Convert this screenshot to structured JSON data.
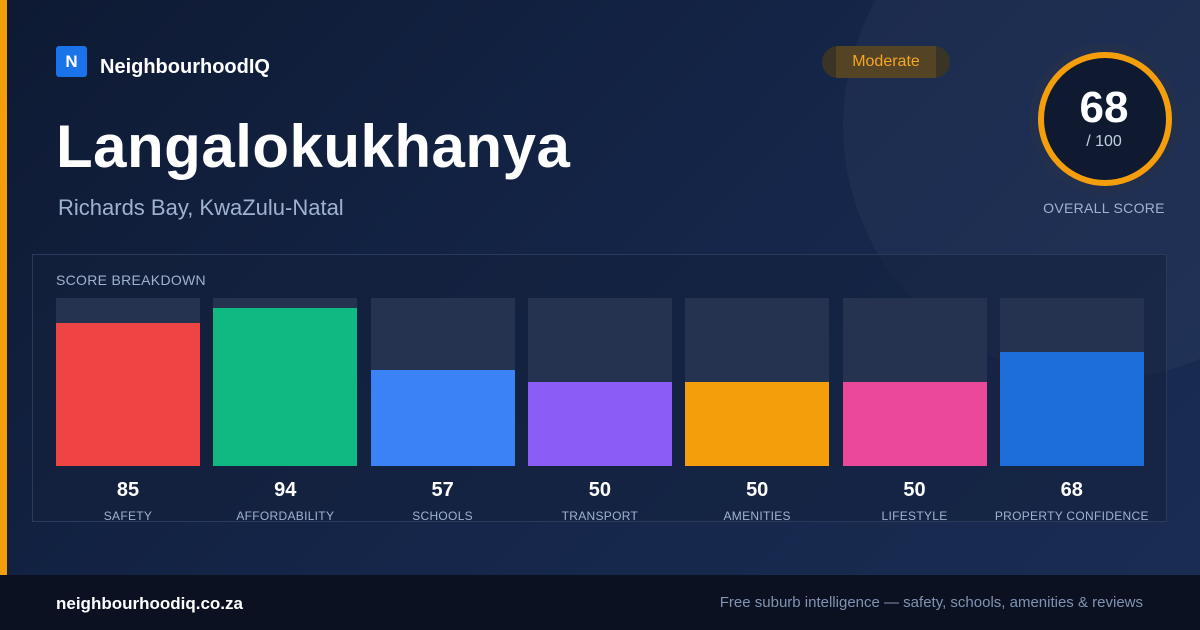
{
  "brand": {
    "logo_letter": "N",
    "name": "NeighbourhoodIQ",
    "logo_color": "#1a73e8"
  },
  "suburb": {
    "name": "Langalokukhanya",
    "location": "Richards Bay, KwaZulu-Natal"
  },
  "badge": {
    "label": "Moderate",
    "color": "#f5a623"
  },
  "overall": {
    "score": "68",
    "max": "/ 100",
    "label": "OVERALL SCORE",
    "fraction": 0.68,
    "ring_color": "#f59e0b"
  },
  "breakdown": {
    "label": "SCORE BREAKDOWN",
    "items": [
      {
        "name": "SAFETY",
        "value": "85",
        "fraction": 0.85,
        "color": "#ef4444"
      },
      {
        "name": "AFFORDABILITY",
        "value": "94",
        "fraction": 0.94,
        "color": "#10b981"
      },
      {
        "name": "SCHOOLS",
        "value": "57",
        "fraction": 0.57,
        "color": "#3b82f6"
      },
      {
        "name": "TRANSPORT",
        "value": "50",
        "fraction": 0.5,
        "color": "#8b5cf6"
      },
      {
        "name": "AMENITIES",
        "value": "50",
        "fraction": 0.5,
        "color": "#f59e0b"
      },
      {
        "name": "LIFESTYLE",
        "value": "50",
        "fraction": 0.5,
        "color": "#ec4899"
      },
      {
        "name": "PROPERTY CONFIDENCE",
        "value": "68",
        "fraction": 0.68,
        "color": "#1d6ed8"
      }
    ]
  },
  "footer": {
    "url": "neighbourhoodiq.co.za",
    "tagline": "Free suburb intelligence — safety, schools, amenities & reviews"
  }
}
